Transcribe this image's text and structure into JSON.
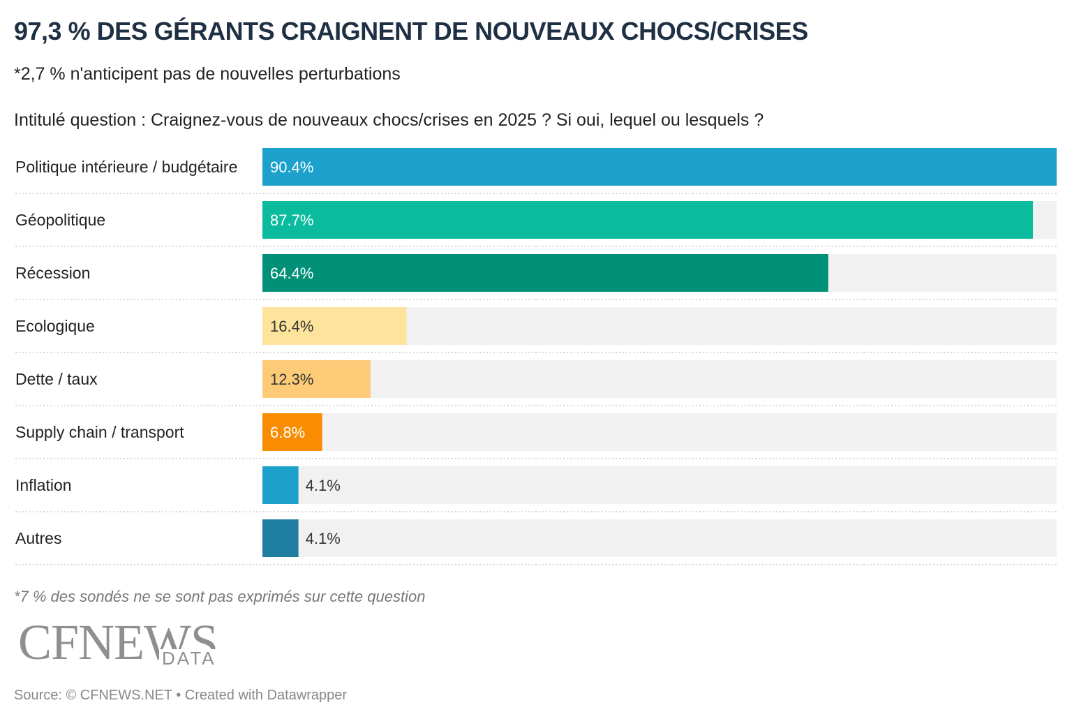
{
  "header": {
    "title": "97,3 % DES GÉRANTS CRAIGNENT DE NOUVEAUX CHOCS/CRISES",
    "subtitle": "*2,7 % n'anticipent pas de nouvelles perturbations",
    "question": "Intitulé question : Craignez-vous de nouveaux chocs/crises en 2025 ? Si oui, lequel ou lesquels ?"
  },
  "chart_data": {
    "type": "bar",
    "orientation": "horizontal",
    "categories": [
      "Politique intérieure / budgétaire",
      "Géopolitique",
      "Récession",
      "Ecologique",
      "Dette / taux",
      "Supply chain / transport",
      "Inflation",
      "Autres"
    ],
    "values": [
      90.4,
      87.7,
      64.4,
      16.4,
      12.3,
      6.8,
      4.1,
      4.1
    ],
    "labels": [
      "90.4%",
      "87.7%",
      "64.4%",
      "16.4%",
      "12.3%",
      "6.8%",
      "4.1%",
      "4.1%"
    ],
    "colors": [
      "#1ba1cc",
      "#0bbb9e",
      "#009078",
      "#fde39b",
      "#fdca78",
      "#f98c00",
      "#1ba1cc",
      "#1f7e9f"
    ],
    "label_colors": [
      "#ffffff",
      "#ffffff",
      "#ffffff",
      "#333333",
      "#333333",
      "#ffffff",
      "#333333",
      "#333333"
    ],
    "xlim": [
      0,
      90.4
    ],
    "track_color": "#f1f1f1"
  },
  "footer": {
    "note": "*7 % des sondés ne se sont pas exprimés sur cette question",
    "logo_main": "CFNEWS",
    "logo_sub": "DATA",
    "source": "Source: © CFNEWS.NET • Created with Datawrapper"
  }
}
